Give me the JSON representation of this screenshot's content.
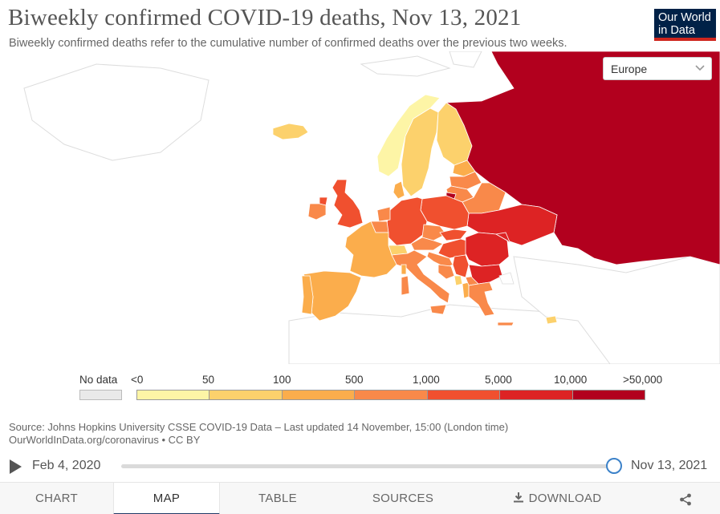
{
  "header": {
    "title": "Biweekly confirmed COVID-19 deaths, Nov 13, 2021",
    "subtitle": "Biweekly confirmed deaths refer to the cumulative number of confirmed deaths over the previous two weeks.",
    "logo_line1": "Our World",
    "logo_line2": "in Data"
  },
  "region_select": {
    "value": "Europe"
  },
  "legend": {
    "no_data_label": "No data",
    "ticks": [
      "<0",
      "50",
      "100",
      "500",
      "1,000",
      "5,000",
      "10,000",
      ">50,000"
    ],
    "colors": [
      "#fdf5a6",
      "#fcd16c",
      "#fbad4c",
      "#f9894a",
      "#f0502f",
      "#dd2324",
      "#b2001e"
    ],
    "no_data_color": "#e9e9e9"
  },
  "map": {
    "country_classes": {
      "russia": ">50,000",
      "ukraine": "10,000 – 50,000",
      "romania": "10,000 – 50,000",
      "bulgaria": "10,000 – 50,000",
      "belarus": "1,000 – 5,000",
      "germany": "5,000 – 10,000",
      "poland": "5,000 – 10,000",
      "united_kingdom": "5,000 – 10,000",
      "hungary": "5,000 – 10,000",
      "ireland": "500 – 1,000",
      "france": "500 – 1,000",
      "spain": "500 – 1,000",
      "portugal": "500 – 1,000",
      "italy": "500 – 1,000",
      "czechia": "1,000 – 5,000",
      "austria": "500 – 1,000",
      "serbia": "1,000 – 5,000",
      "greece": "1,000 – 5,000",
      "lithuania": "500 – 1,000",
      "latvia": "500 – 1,000",
      "estonia": "100 – 500",
      "finland": "100 – 500",
      "sweden": "100 – 500",
      "norway": "50 – 100",
      "iceland": "50 – 100",
      "netherlands": "500 – 1,000",
      "belgium": "500 – 1,000",
      "switzerland": "100 – 500",
      "denmark": "100 – 500",
      "cyprus": "50 – 100"
    }
  },
  "source": {
    "line1": "Source: Johns Hopkins University CSSE COVID-19 Data – Last updated 14 November, 15:00 (London time)",
    "line2": "OurWorldInData.org/coronavirus • CC BY"
  },
  "timeline": {
    "start_label": "Feb 4, 2020",
    "end_label": "Nov 13, 2021",
    "position": 1.0
  },
  "tabs": [
    {
      "label": "Chart"
    },
    {
      "label": "Map"
    },
    {
      "label": "Table"
    },
    {
      "label": "Sources"
    },
    {
      "label": "Download"
    }
  ],
  "icons": {
    "play": "play-icon",
    "share": "share-icon",
    "download": "download-icon",
    "dropdown": "chevron-down-icon"
  }
}
